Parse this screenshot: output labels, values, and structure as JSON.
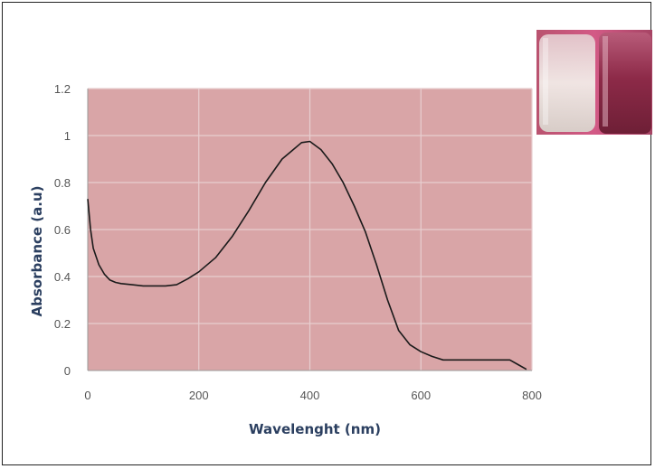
{
  "chart_data": {
    "type": "line",
    "title": "",
    "xlabel": "Wavelenght (nm)",
    "ylabel": "Absorbance (a.u)",
    "xlim": [
      0,
      800
    ],
    "ylim": [
      0,
      1.2
    ],
    "xticks": [
      0,
      200,
      400,
      600,
      800
    ],
    "xtick_labels": [
      "0",
      "200",
      "400",
      "600",
      "800"
    ],
    "yticks": [
      0,
      0.2,
      0.4,
      0.6,
      0.8,
      1,
      1.2
    ],
    "ytick_labels": [
      "0",
      "0.2",
      "0.4",
      "0.6",
      "0.8",
      "1",
      "1.2"
    ],
    "grid": true,
    "legend": "none",
    "colors": {
      "plot_background": "#d9a5a7",
      "gridline": "#e8cfd0",
      "line": "#1a1a1a",
      "axis_title": "#2b3f60",
      "tick_label": "#555555"
    },
    "series": [
      {
        "x": [
          0,
          5,
          10,
          20,
          30,
          40,
          50,
          60,
          80,
          100,
          120,
          140,
          160,
          180,
          200,
          230,
          260,
          290,
          320,
          350,
          370,
          385,
          400,
          420,
          440,
          460,
          480,
          500,
          520,
          540,
          560,
          580,
          600,
          620,
          640,
          700,
          760,
          775,
          790
        ],
        "y": [
          0.73,
          0.6,
          0.52,
          0.45,
          0.41,
          0.385,
          0.375,
          0.37,
          0.365,
          0.36,
          0.36,
          0.36,
          0.365,
          0.39,
          0.42,
          0.48,
          0.57,
          0.68,
          0.8,
          0.9,
          0.94,
          0.97,
          0.975,
          0.94,
          0.88,
          0.8,
          0.7,
          0.59,
          0.45,
          0.3,
          0.17,
          0.11,
          0.08,
          0.06,
          0.045,
          0.045,
          0.045,
          0.025,
          0.005
        ]
      }
    ]
  },
  "inset_photo": {
    "icon": "sample-vials-photo",
    "colors": {
      "left_vial": "#e8ddd8",
      "right_vial": "#8a2a45",
      "background": "#c94f78"
    }
  }
}
